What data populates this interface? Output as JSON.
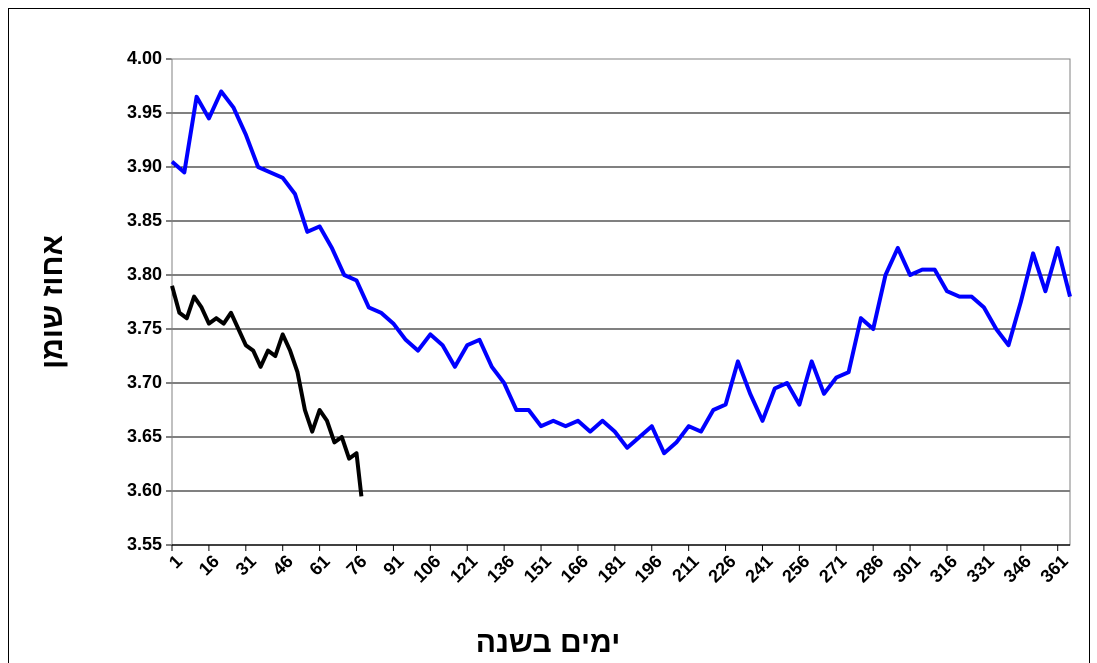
{
  "chart_data": {
    "type": "line",
    "xlabel": "ימים בשנה",
    "ylabel": "אחוז שומן",
    "xlim": [
      1,
      366
    ],
    "xticks": [
      1,
      16,
      31,
      46,
      61,
      76,
      91,
      106,
      121,
      136,
      151,
      166,
      181,
      196,
      211,
      226,
      241,
      256,
      271,
      286,
      301,
      316,
      331,
      346,
      361
    ],
    "ylim": [
      3.55,
      4
    ],
    "yticks": [
      3.55,
      {
        "value": 3.6,
        "label": "3.60"
      },
      3.65,
      {
        "value": 3.7,
        "label": "3.70"
      },
      3.75,
      {
        "value": 3.8,
        "label": "3.80"
      },
      3.85,
      {
        "value": 3.9,
        "label": "3.90"
      },
      3.95,
      {
        "value": 4,
        "label": "4.00"
      }
    ],
    "grid": true,
    "series": [
      {
        "color": "#0000ff",
        "x": [
          1,
          6,
          11,
          16,
          21,
          26,
          31,
          36,
          41,
          46,
          51,
          56,
          61,
          66,
          71,
          76,
          81,
          86,
          91,
          96,
          101,
          106,
          111,
          116,
          121,
          126,
          131,
          136,
          141,
          146,
          151,
          156,
          161,
          166,
          171,
          176,
          181,
          186,
          191,
          196,
          201,
          206,
          211,
          216,
          221,
          226,
          231,
          236,
          241,
          246,
          251,
          256,
          261,
          266,
          271,
          276,
          281,
          286,
          291,
          296,
          301,
          306,
          311,
          316,
          321,
          326,
          331,
          336,
          341,
          346,
          351,
          356,
          361,
          366
        ],
        "values": [
          3.905,
          3.895,
          3.965,
          3.945,
          3.97,
          3.955,
          3.93,
          3.9,
          3.895,
          3.89,
          3.875,
          3.84,
          3.845,
          3.825,
          3.8,
          3.795,
          3.77,
          3.765,
          3.755,
          3.74,
          3.73,
          3.745,
          3.735,
          3.715,
          3.735,
          3.74,
          3.715,
          3.7,
          3.675,
          3.675,
          3.66,
          3.665,
          3.66,
          3.665,
          3.655,
          3.665,
          3.655,
          3.64,
          3.65,
          3.66,
          3.635,
          3.645,
          3.66,
          3.655,
          3.675,
          3.68,
          3.72,
          3.69,
          3.665,
          3.695,
          3.7,
          3.68,
          3.72,
          3.69,
          3.705,
          3.71,
          3.76,
          3.75,
          3.8,
          3.825,
          3.8,
          3.805,
          3.805,
          3.785,
          3.78,
          3.78,
          3.77,
          3.75,
          3.735,
          3.775,
          3.82,
          3.785,
          3.825,
          3.78
        ]
      },
      {
        "color": "#000000",
        "x": [
          1,
          4,
          7,
          10,
          13,
          16,
          19,
          22,
          25,
          28,
          31,
          34,
          37,
          40,
          43,
          46,
          49,
          52,
          55,
          58,
          61,
          64,
          67,
          70,
          73,
          76,
          78
        ],
        "values": [
          3.79,
          3.765,
          3.76,
          3.78,
          3.77,
          3.755,
          3.76,
          3.755,
          3.765,
          3.75,
          3.735,
          3.73,
          3.715,
          3.73,
          3.725,
          3.745,
          3.73,
          3.71,
          3.675,
          3.655,
          3.675,
          3.665,
          3.645,
          3.65,
          3.63,
          3.635,
          3.595
        ]
      }
    ]
  }
}
